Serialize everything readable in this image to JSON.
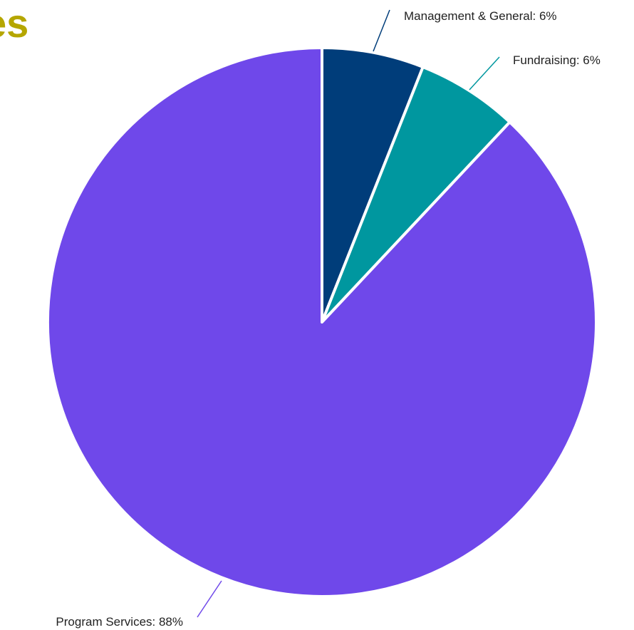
{
  "chart_data": {
    "type": "pie",
    "title": "es",
    "title_color": "#b5a600",
    "start_angle_deg": 0,
    "direction": "clockwise",
    "slices": [
      {
        "label": "Management & General: 6%",
        "value": 6,
        "color": "#003d7a"
      },
      {
        "label": "Fundraising: 6%",
        "value": 6,
        "color": "#00979f"
      },
      {
        "label": "Program Services: 88%",
        "value": 88,
        "color": "#6f48ea"
      }
    ]
  }
}
